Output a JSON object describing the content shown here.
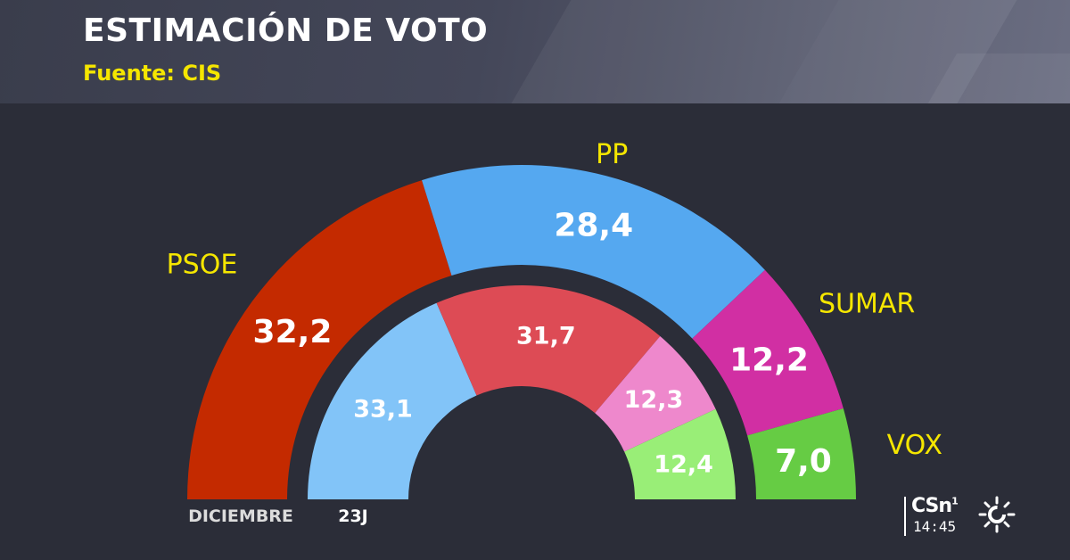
{
  "header": {
    "title": "ESTIMACIÓN DE VOTO",
    "subtitle": "Fuente: CIS"
  },
  "chart_data": {
    "type": "semicircle-donut",
    "rings": [
      {
        "name": "DICIEMBRE",
        "slices": [
          {
            "party": "PSOE",
            "value": 32.2,
            "label": "32,2",
            "color": "#c42a00"
          },
          {
            "party": "PP",
            "value": 28.4,
            "label": "28,4",
            "color": "#55a8f0"
          },
          {
            "party": "SUMAR",
            "value": 12.2,
            "label": "12,2",
            "color": "#d12fa3"
          },
          {
            "party": "VOX",
            "value": 7.0,
            "label": "7,0",
            "color": "#66cc44"
          }
        ]
      },
      {
        "name": "23J",
        "slices": [
          {
            "party": "PP",
            "value": 33.1,
            "label": "33,1",
            "color": "#82c4f8"
          },
          {
            "party": "PSOE",
            "value": 31.7,
            "label": "31,7",
            "color": "#dd4b55"
          },
          {
            "party": "SUMAR",
            "value": 12.3,
            "label": "12,3",
            "color": "#ee88cc"
          },
          {
            "party": "VOX",
            "value": 12.4,
            "label": "12,4",
            "color": "#99ee77"
          }
        ]
      }
    ],
    "party_labels": [
      {
        "party": "PSOE",
        "text": "PSOE"
      },
      {
        "party": "PP",
        "text": "PP"
      },
      {
        "party": "SUMAR",
        "text": "SUMAR"
      },
      {
        "party": "VOX",
        "text": "VOX"
      }
    ],
    "colors": {
      "party_label": "#f5e600",
      "value_text": "#ffffff"
    }
  },
  "logo": {
    "brand": "CSn",
    "brand_sub": "1",
    "time": "14:45",
    "icon": "sun-logo-icon"
  }
}
